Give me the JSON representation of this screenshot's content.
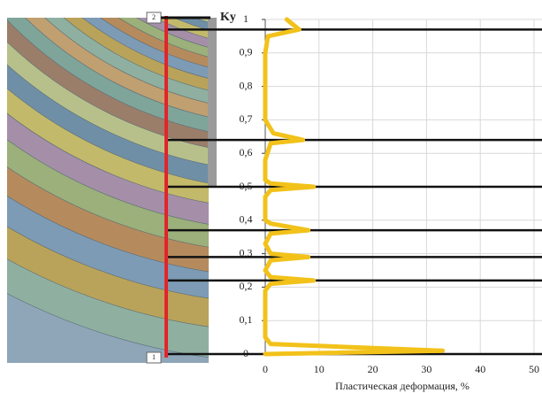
{
  "chart_data": {
    "type": "line",
    "x_label": "Пластическая деформация, %",
    "y_label": "Ky",
    "markers": [
      "2",
      "1"
    ],
    "xlim": [
      0,
      50
    ],
    "xticks": [
      0,
      10,
      20,
      30,
      40,
      50
    ],
    "ylim": [
      0,
      1
    ],
    "yticks": [
      0,
      {
        "value": 0.1,
        "label": "0,1"
      },
      {
        "value": 0.2,
        "label": "0,2"
      },
      {
        "value": 0.3,
        "label": "0,3"
      },
      {
        "value": 0.4,
        "label": "0,4"
      },
      {
        "value": 0.5,
        "label": "0,5"
      },
      {
        "value": 0.6,
        "label": "0,6"
      },
      {
        "value": 0.7,
        "label": "0,7"
      },
      {
        "value": 0.8,
        "label": "0,8"
      },
      {
        "value": 0.9,
        "label": "0,9"
      },
      1
    ],
    "grid": true,
    "hlines": [
      0.97,
      0.64,
      0.5,
      0.37,
      0.29,
      0.22,
      0
    ],
    "series": [
      {
        "color": "#f2c21a",
        "x": [
          4,
          6.3,
          0.5,
          0,
          0,
          1.5,
          7,
          1,
          0,
          0,
          1,
          9,
          1,
          0,
          0,
          1,
          8,
          1,
          0,
          1,
          8,
          1,
          0,
          1,
          9,
          1,
          0,
          0,
          1,
          33,
          0
        ],
        "values": [
          1.0,
          0.97,
          0.95,
          0.9,
          0.7,
          0.66,
          0.64,
          0.63,
          0.58,
          0.52,
          0.51,
          0.5,
          0.49,
          0.47,
          0.4,
          0.39,
          0.37,
          0.36,
          0.33,
          0.3,
          0.29,
          0.28,
          0.25,
          0.23,
          0.22,
          0.21,
          0.19,
          0.05,
          0.03,
          0.01,
          0
        ]
      }
    ]
  }
}
